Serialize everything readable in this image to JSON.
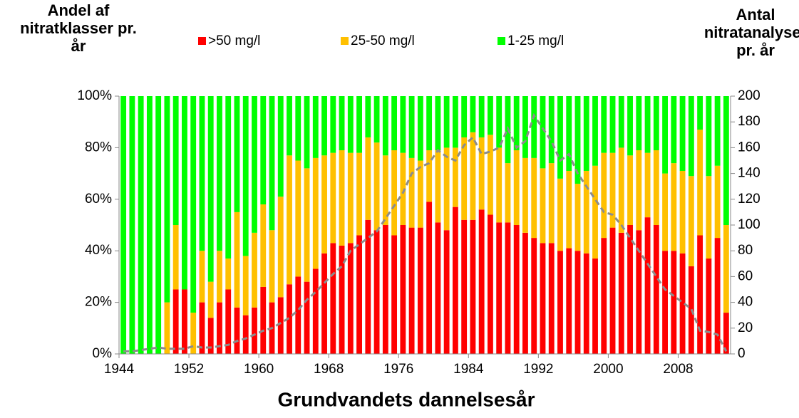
{
  "chart_data": {
    "type": "stacked_bar_line",
    "y_label": [
      "Andel af",
      "nitratklasser pr.",
      "år"
    ],
    "y2_label": [
      "Antal",
      "nitratanalyser",
      "pr. år"
    ],
    "x_label": "Grundvandets dannelsesår",
    "x": [
      1944,
      1945,
      1946,
      1947,
      1948,
      1949,
      1950,
      1951,
      1952,
      1953,
      1954,
      1955,
      1956,
      1957,
      1958,
      1959,
      1960,
      1961,
      1962,
      1963,
      1964,
      1965,
      1966,
      1967,
      1968,
      1969,
      1970,
      1971,
      1972,
      1973,
      1974,
      1975,
      1976,
      1977,
      1978,
      1979,
      1980,
      1981,
      1982,
      1983,
      1984,
      1985,
      1986,
      1987,
      1988,
      1989,
      1990,
      1991,
      1992,
      1993,
      1994,
      1995,
      1996,
      1997,
      1998,
      1999,
      2000,
      2001,
      2002,
      2003,
      2004,
      2005,
      2006,
      2007,
      2008,
      2009,
      2010,
      2011,
      2012,
      2013
    ],
    "xlim": [
      1944,
      2014
    ],
    "xticks": [
      1944,
      1952,
      1960,
      1968,
      1976,
      1984,
      1992,
      2000,
      2008
    ],
    "ylim": [
      0,
      100
    ],
    "yticks": [
      {
        "value": 0,
        "label": "0%"
      },
      {
        "value": 20,
        "label": "20%"
      },
      {
        "value": 40,
        "label": "40%"
      },
      {
        "value": 60,
        "label": "60%"
      },
      {
        "value": 80,
        "label": "80%"
      },
      {
        "value": 100,
        "label": "100%"
      }
    ],
    "y2lim": [
      0,
      200
    ],
    "y2ticks": [
      0,
      20,
      40,
      60,
      80,
      100,
      120,
      140,
      160,
      180,
      200
    ],
    "series": [
      {
        "name": ">50 mg/l",
        "color": "#ff0000",
        "values": [
          0,
          0,
          0,
          0,
          0,
          0,
          25,
          25,
          0,
          20,
          14,
          20,
          25,
          18,
          15,
          18,
          26,
          20,
          22,
          27,
          30,
          28,
          33,
          39,
          43,
          42,
          43,
          46,
          52,
          48,
          50,
          46,
          50,
          49,
          49,
          59,
          51,
          48,
          57,
          52,
          52,
          56,
          54,
          51,
          51,
          50,
          47,
          45,
          43,
          43,
          40,
          41,
          40,
          39,
          37,
          45,
          49,
          47,
          50,
          48,
          53,
          50,
          40,
          40,
          39,
          34,
          46,
          37,
          45,
          16
        ]
      },
      {
        "name": "25-50 mg/l",
        "color": "#ffc000",
        "values": [
          0,
          0,
          0,
          0,
          0,
          20,
          25,
          0,
          16,
          20,
          14,
          20,
          12,
          37,
          23,
          29,
          32,
          28,
          39,
          50,
          45,
          44,
          43,
          38,
          35,
          37,
          35,
          32,
          32,
          34,
          27,
          33,
          28,
          27,
          26,
          20,
          28,
          32,
          23,
          32,
          34,
          28,
          31,
          29,
          23,
          29,
          29,
          31,
          29,
          31,
          28,
          30,
          26,
          32,
          36,
          33,
          29,
          33,
          27,
          31,
          25,
          29,
          30,
          34,
          32,
          35,
          41,
          32,
          28,
          34
        ]
      },
      {
        "name": "1-25 mg/l",
        "color": "#00ff00",
        "values": [
          100,
          100,
          100,
          100,
          100,
          80,
          50,
          75,
          84,
          60,
          72,
          60,
          63,
          45,
          62,
          53,
          42,
          52,
          39,
          23,
          25,
          28,
          24,
          23,
          22,
          21,
          22,
          22,
          16,
          18,
          23,
          21,
          22,
          24,
          25,
          21,
          21,
          20,
          20,
          16,
          14,
          16,
          15,
          20,
          26,
          21,
          24,
          24,
          28,
          26,
          32,
          29,
          34,
          29,
          27,
          22,
          22,
          20,
          23,
          21,
          22,
          21,
          30,
          26,
          29,
          31,
          13,
          31,
          27,
          50
        ]
      },
      {
        "name": "Antal nitratanalyser",
        "axis": "y2",
        "color": "#8c8c8c",
        "values": [
          2,
          2,
          3,
          4,
          5,
          4,
          4,
          4,
          6,
          5,
          5,
          6,
          7,
          10,
          12,
          15,
          18,
          20,
          24,
          28,
          34,
          42,
          48,
          55,
          62,
          68,
          80,
          85,
          90,
          95,
          105,
          115,
          125,
          140,
          145,
          148,
          158,
          153,
          150,
          162,
          168,
          155,
          157,
          160,
          175,
          160,
          165,
          185,
          175,
          165,
          150,
          155,
          140,
          130,
          120,
          110,
          108,
          100,
          90,
          80,
          70,
          60,
          50,
          45,
          40,
          35,
          18,
          17,
          15,
          2
        ]
      }
    ]
  }
}
